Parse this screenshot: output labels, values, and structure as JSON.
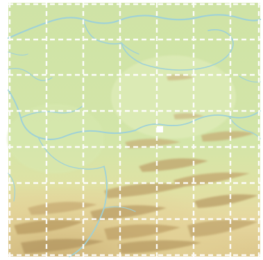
{
  "map": {
    "grid": {
      "columns": 7,
      "rows": 7,
      "line_color": "#ffffff",
      "style": "dashed"
    },
    "colors": {
      "lowland": "#cfe3a6",
      "lowland_light": "#e0eebb",
      "upland": "#e7d9a0",
      "highland": "#d6bf7e",
      "ridge_shadow": "#b49962",
      "river": "#9ed1d8",
      "background": "#ffffff"
    },
    "marker": {
      "shape": "square",
      "color": "#ffffff",
      "icon": "location-marker-icon"
    }
  }
}
